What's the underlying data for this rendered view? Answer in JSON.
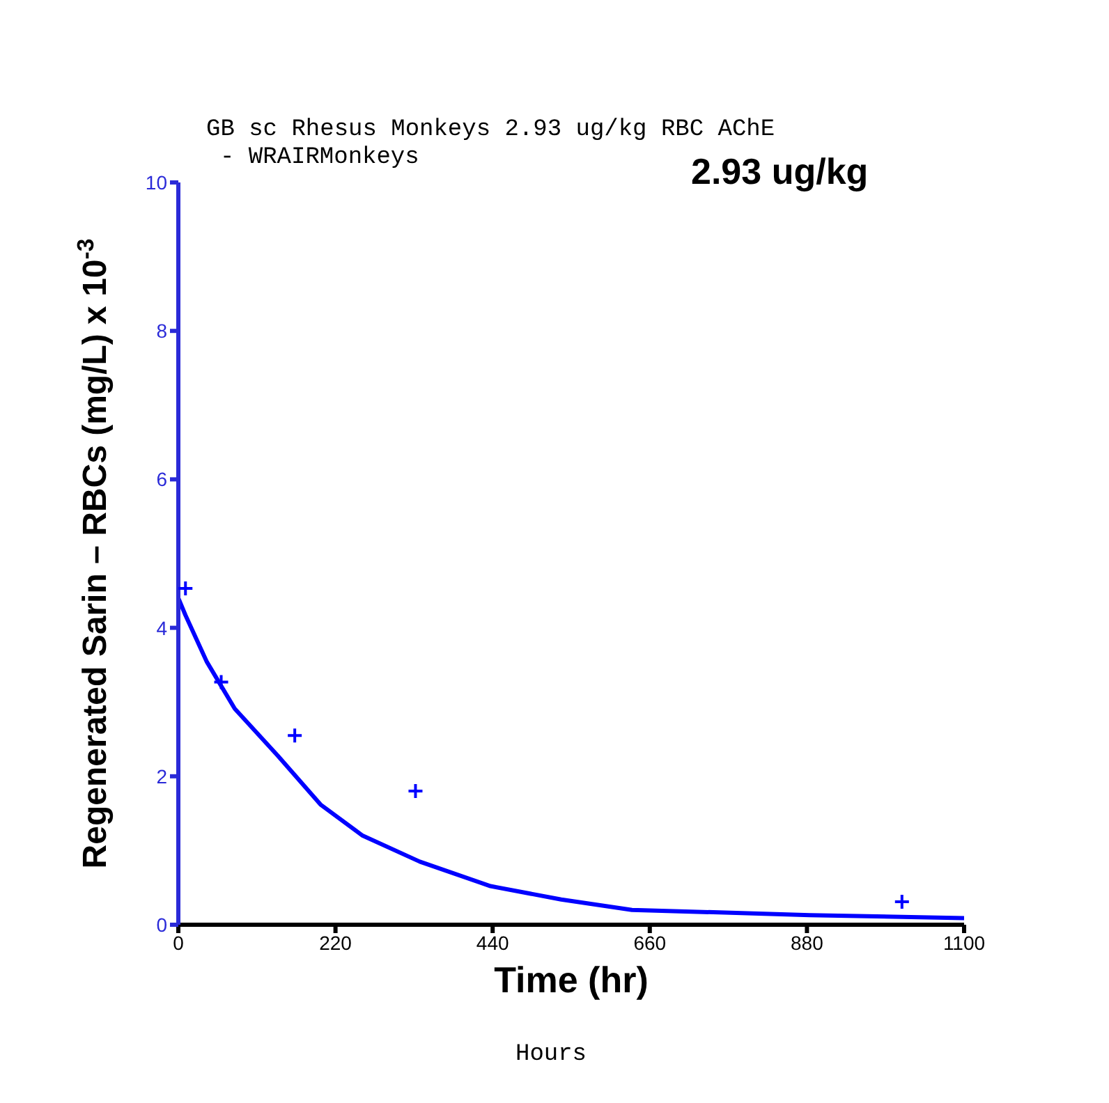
{
  "chart_data": {
    "type": "line",
    "title": "GB sc Rhesus Monkeys 2.93 ug/kg RBC AChE",
    "subtitle": "- WRAIRMonkeys",
    "xlabel": "Time (hr)",
    "ylabel": "Regenerated Sarin – RBCs (mg/L) x 10$^{-3}$",
    "annotations": [
      "2.93 ug/kg",
      "Hours"
    ],
    "xlim": [
      0,
      1100
    ],
    "xticks": [
      0,
      220,
      440,
      660,
      880,
      1100
    ],
    "ylim": [
      0,
      10
    ],
    "yticks": [
      0,
      2,
      4,
      6,
      8,
      10
    ],
    "grid": false,
    "legend": false,
    "series": [
      {
        "color": "#0000ff",
        "x": [
          0,
          10,
          40,
          79,
          139,
          199,
          258,
          338,
          437,
          536,
          635,
          884,
          1100
        ],
        "values": [
          4.4,
          4.17,
          3.54,
          2.91,
          2.28,
          1.62,
          1.2,
          0.85,
          0.52,
          0.34,
          0.2,
          0.13,
          0.09
        ]
      },
      {
        "type": "scatter",
        "color": "#0000ff",
        "marker": "cross",
        "x": [
          10,
          60,
          163,
          332,
          1013
        ],
        "values": [
          4.53,
          3.27,
          2.55,
          1.8,
          0.31
        ]
      }
    ]
  }
}
